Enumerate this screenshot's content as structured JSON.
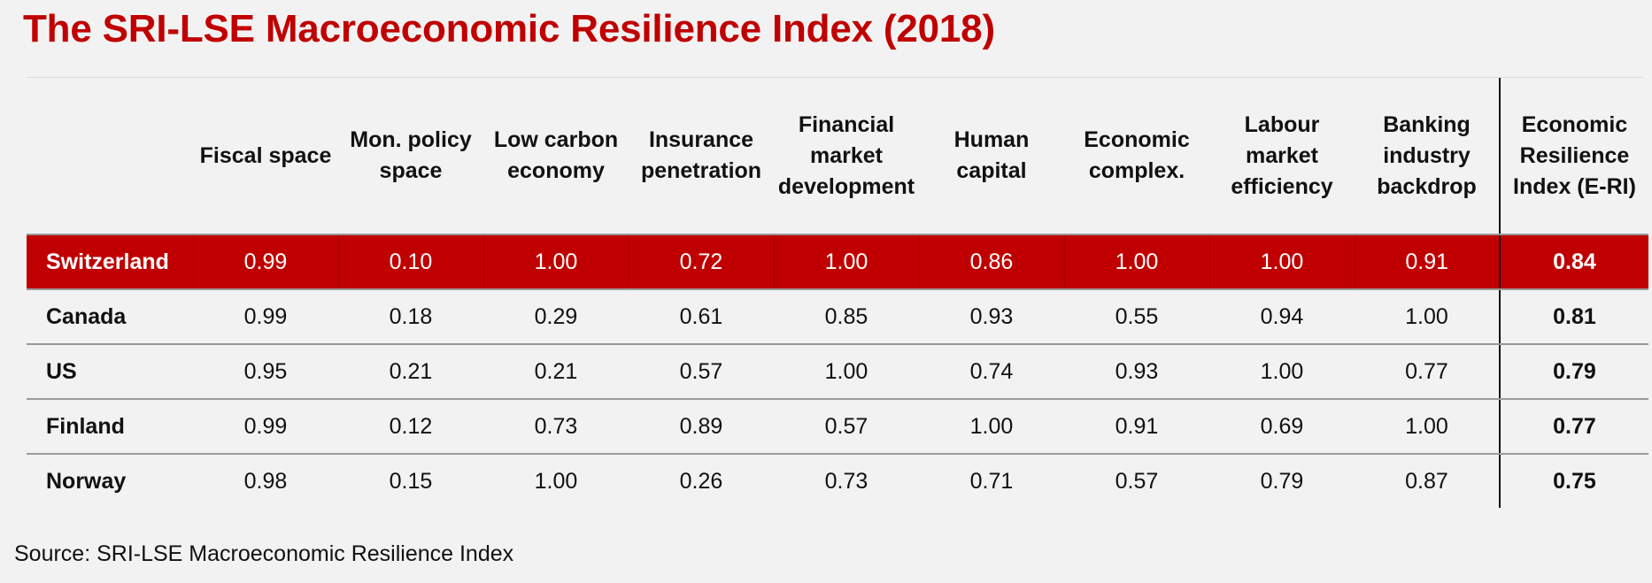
{
  "title": "The SRI-LSE Macroeconomic Resilience Index (2018)",
  "source": "Source: SRI-LSE Macroeconomic Resilience Index",
  "colors": {
    "accent": "#c00000",
    "background": "#f3f2f2"
  },
  "chart_data": {
    "type": "table",
    "title": "The SRI-LSE Macroeconomic Resilience Index (2018)",
    "columns": [
      "Fiscal space",
      "Mon. policy space",
      "Low carbon economy",
      "Insurance penetration",
      "Financial market development",
      "Human capital",
      "Economic complex.",
      "Labour market efficiency",
      "Banking industry backdrop",
      "Economic Resilience Index (E-RI)"
    ],
    "rows": [
      {
        "country": "Switzerland",
        "highlighted": true,
        "values": [
          "0.99",
          "0.10",
          "1.00",
          "0.72",
          "1.00",
          "0.86",
          "1.00",
          "1.00",
          "0.91",
          "0.84"
        ]
      },
      {
        "country": "Canada",
        "highlighted": false,
        "values": [
          "0.99",
          "0.18",
          "0.29",
          "0.61",
          "0.85",
          "0.93",
          "0.55",
          "0.94",
          "1.00",
          "0.81"
        ]
      },
      {
        "country": "US",
        "highlighted": false,
        "values": [
          "0.95",
          "0.21",
          "0.21",
          "0.57",
          "1.00",
          "0.74",
          "0.93",
          "1.00",
          "0.77",
          "0.79"
        ]
      },
      {
        "country": "Finland",
        "highlighted": false,
        "values": [
          "0.99",
          "0.12",
          "0.73",
          "0.89",
          "0.57",
          "1.00",
          "0.91",
          "0.69",
          "1.00",
          "0.77"
        ]
      },
      {
        "country": "Norway",
        "highlighted": false,
        "values": [
          "0.98",
          "0.15",
          "1.00",
          "0.26",
          "0.73",
          "0.71",
          "0.57",
          "0.79",
          "0.87",
          "0.75"
        ]
      }
    ]
  }
}
